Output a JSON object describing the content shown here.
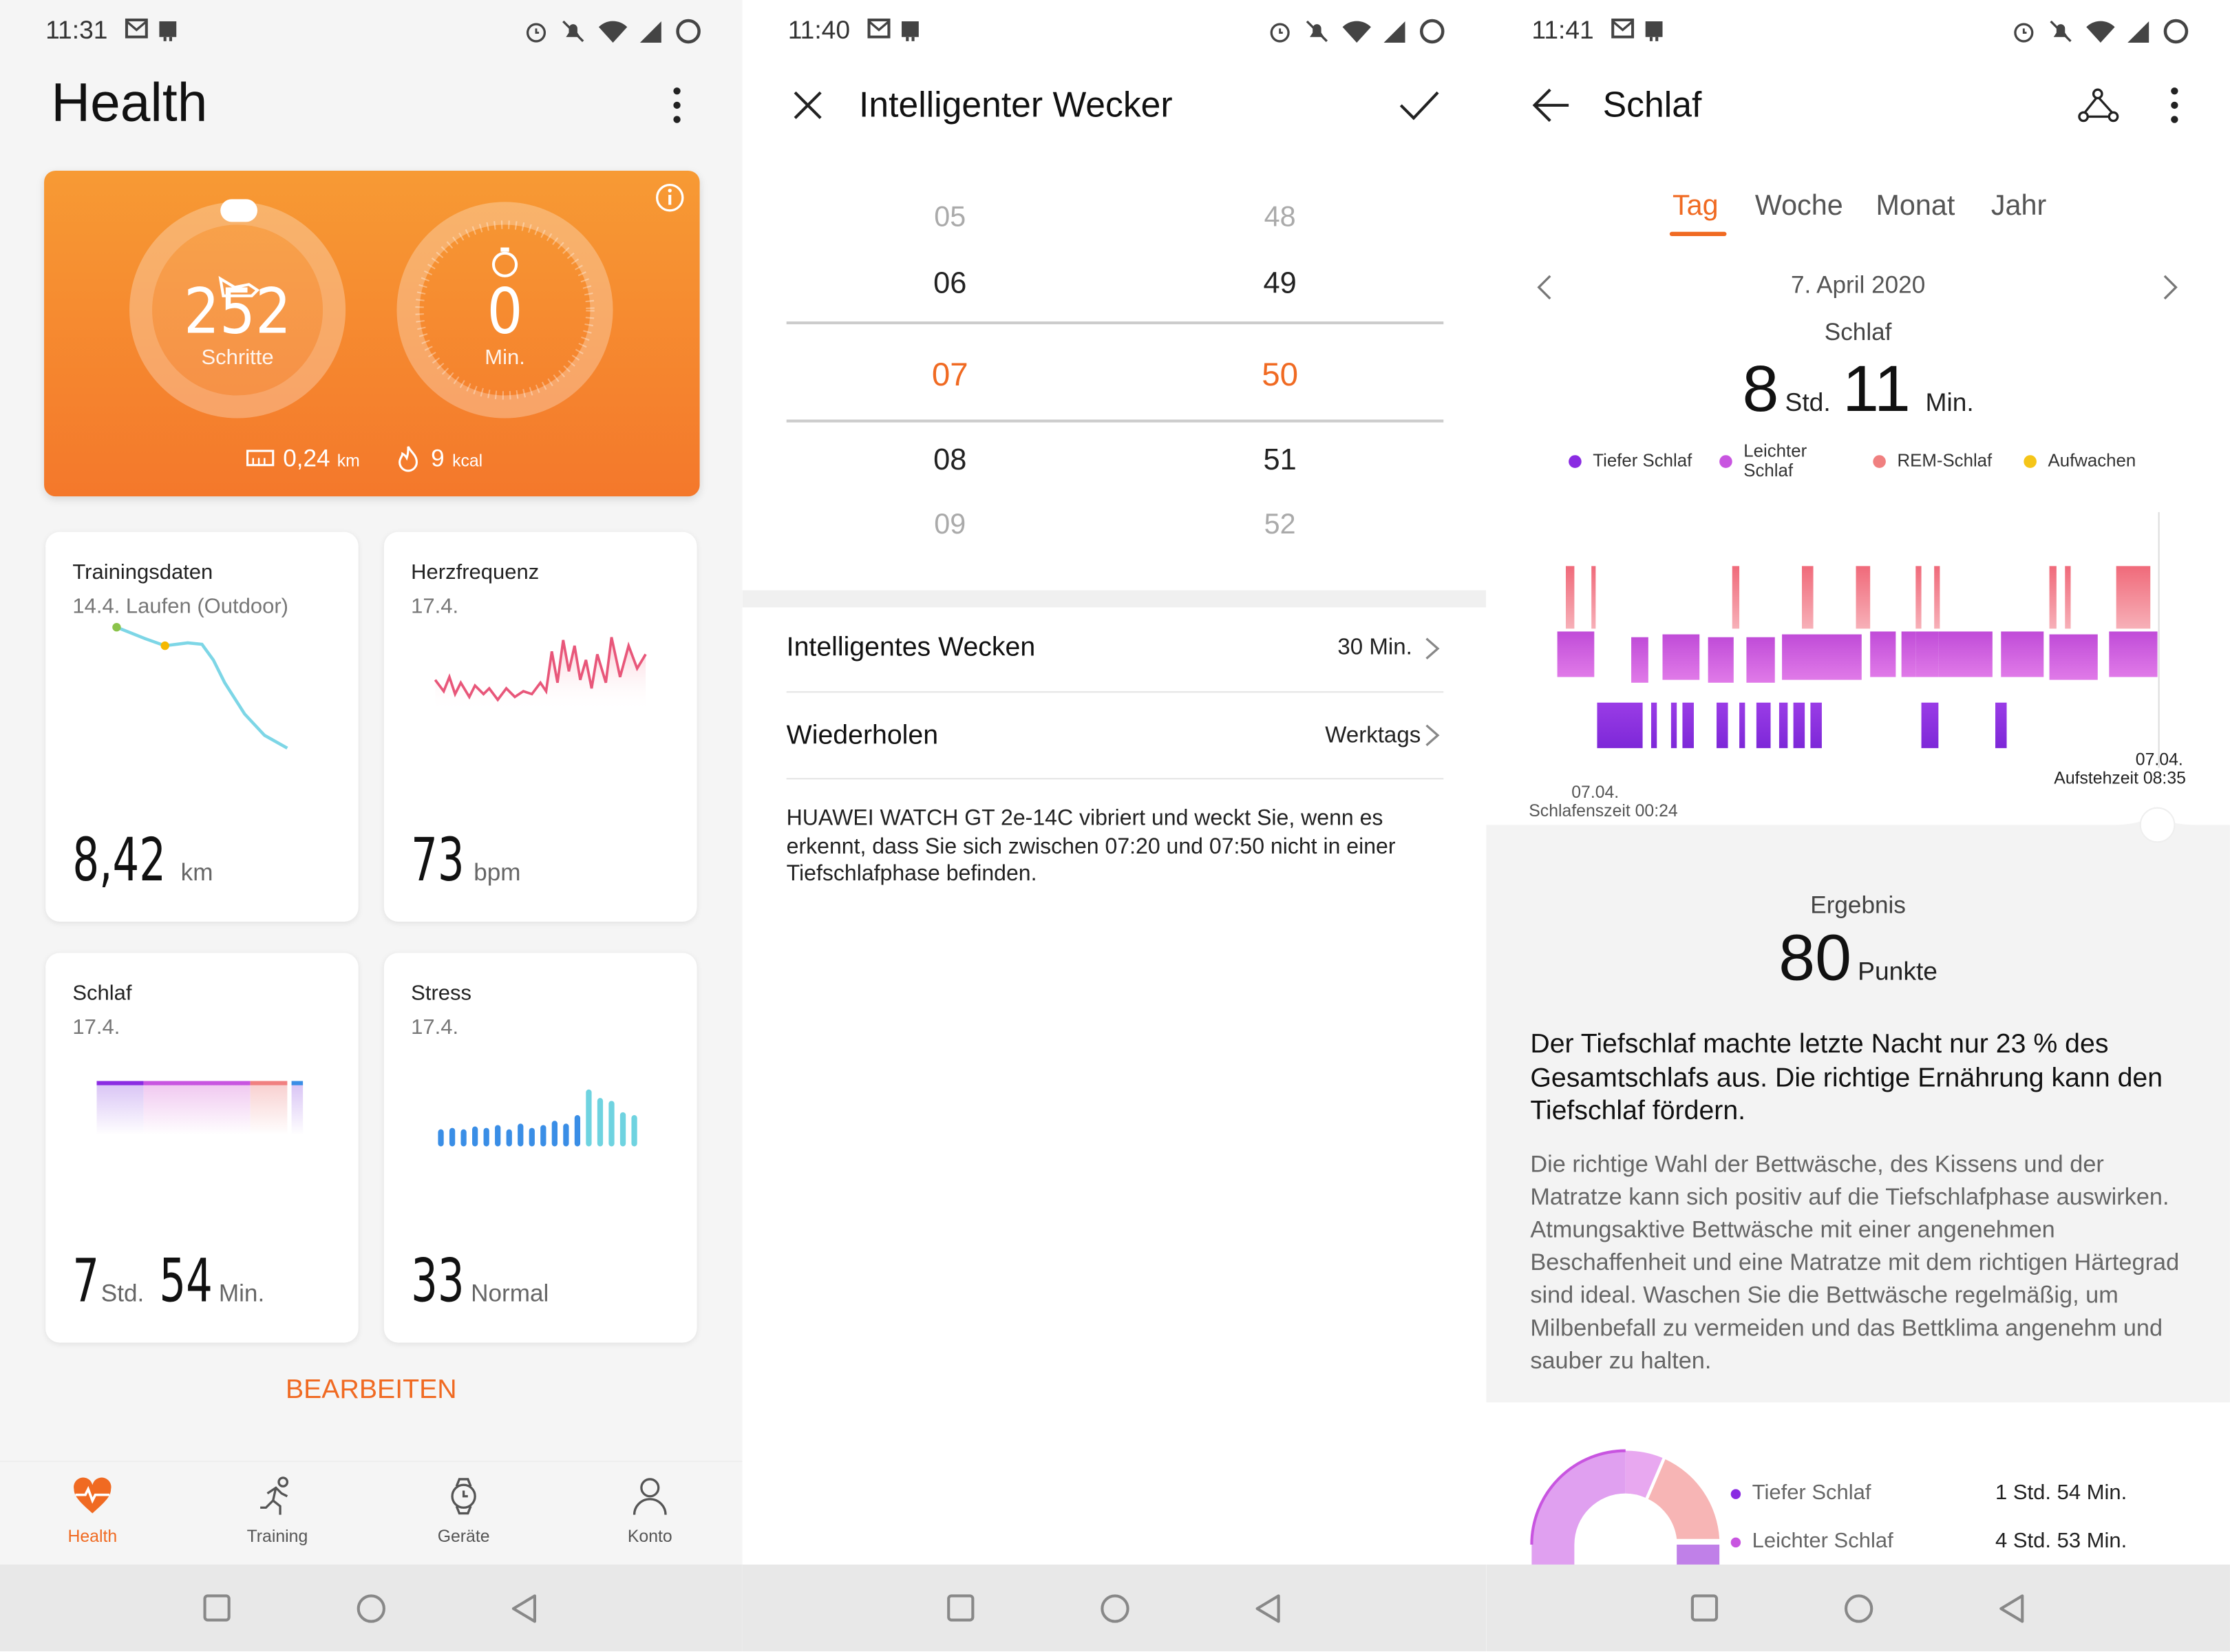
{
  "statusbar": {
    "p1_time": "11:31",
    "p2_time": "11:40",
    "p3_time": "11:41"
  },
  "health": {
    "title": "Health",
    "steps_value": "252",
    "steps_label": "Schritte",
    "active_value": "0",
    "active_label": "Min.",
    "distance_value": "0,24",
    "distance_unit": "km",
    "calories_value": "9",
    "calories_unit": "kcal",
    "cards": [
      {
        "title": "Trainingsdaten",
        "subtitle": "14.4.  Laufen (Outdoor)",
        "value": "8,42",
        "unit": "km"
      },
      {
        "title": "Herzfrequenz",
        "subtitle": "17.4.",
        "value": "73",
        "unit": "bpm"
      },
      {
        "title": "Schlaf",
        "subtitle": "17.4.",
        "value": "7",
        "unit": "Std.",
        "value2": "54",
        "unit2": "Min."
      },
      {
        "title": "Stress",
        "subtitle": "17.4.",
        "value": "33",
        "unit": "Normal"
      }
    ],
    "edit_label": "BEARBEITEN",
    "bottom_nav": [
      {
        "label": "Health"
      },
      {
        "label": "Training"
      },
      {
        "label": "Geräte"
      },
      {
        "label": "Konto"
      }
    ]
  },
  "alarm": {
    "title": "Intelligenter Wecker",
    "hours": [
      "05",
      "06",
      "07",
      "08",
      "09"
    ],
    "minutes": [
      "48",
      "49",
      "50",
      "51",
      "52"
    ],
    "smart_wake_label": "Intelligentes Wecken",
    "smart_wake_value": "30  Min.",
    "repeat_label": "Wiederholen",
    "repeat_value": "Werktags",
    "description": "HUAWEI WATCH GT 2e-14C vibriert und weckt Sie, wenn es erkennt, dass Sie sich zwischen 07:20 und 07:50 nicht in einer Tiefschlafphase befinden."
  },
  "sleep": {
    "title": "Schlaf",
    "tabs": [
      "Tag",
      "Woche",
      "Monat",
      "Jahr"
    ],
    "date": "7. April 2020",
    "label": "Schlaf",
    "hours": "8",
    "hours_unit": "Std.",
    "minutes": "11",
    "minutes_unit": "Min.",
    "legend": [
      {
        "label": "Tiefer Schlaf",
        "color": "#8a2be2"
      },
      {
        "label": "Leichter Schlaf",
        "color": "#c855e0"
      },
      {
        "label": "REM-Schlaf",
        "color": "#f08080"
      },
      {
        "label": "Aufwachen",
        "color": "#f5c518"
      }
    ],
    "sleep_date": "07.04.",
    "sleep_time": "Schlafenszeit 00:24",
    "wake_date": "07.04.",
    "wake_time": "Aufstehzeit 08:35",
    "result_label": "Ergebnis",
    "score": "80",
    "score_unit": "Punkte",
    "headline": "Der Tiefschlaf machte letzte Nacht nur 23 % des Gesamtschlafs aus. Die richtige Ernährung kann den Tiefschlaf fördern.",
    "advice": "Die richtige Wahl der Bettwäsche, des Kissens und der Matratze kann sich positiv auf die Tiefschlafphase auswirken. Atmungsaktive Bettwäsche mit einer angenehmen Beschaffenheit und eine Matratze mit dem richtigen Härtegrad sind ideal. Waschen Sie die Bettwäsche regelmäßig, um Milbenbefall zu vermeiden und das Bettklima angenehm und sauber zu halten.",
    "breakdown": [
      {
        "label": "Tiefer Schlaf",
        "value": "1 Std. 54 Min.",
        "color": "#8a2be2"
      },
      {
        "label": "Leichter Schlaf",
        "value": "4 Std. 53 Min.",
        "color": "#c855e0"
      }
    ]
  }
}
